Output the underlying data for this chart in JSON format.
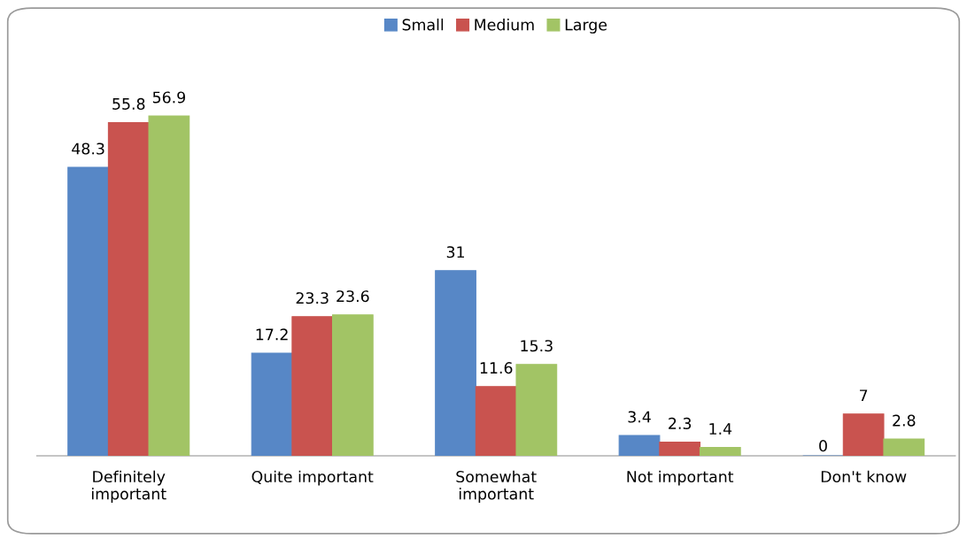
{
  "chart_data": {
    "type": "bar",
    "categories": [
      "Definitely\nimportant",
      "Quite important",
      "Somewhat\nimportant",
      "Not important",
      "Don't know"
    ],
    "series": [
      {
        "name": "Small",
        "color": "#5787c6",
        "values": [
          48.3,
          17.2,
          31,
          3.4,
          0
        ]
      },
      {
        "name": "Medium",
        "color": "#c9534f",
        "values": [
          55.8,
          23.3,
          11.6,
          2.3,
          7
        ]
      },
      {
        "name": "Large",
        "color": "#a2c465",
        "values": [
          56.9,
          23.6,
          15.3,
          1.4,
          2.8
        ]
      }
    ],
    "data_labels": true,
    "legend": "top"
  }
}
